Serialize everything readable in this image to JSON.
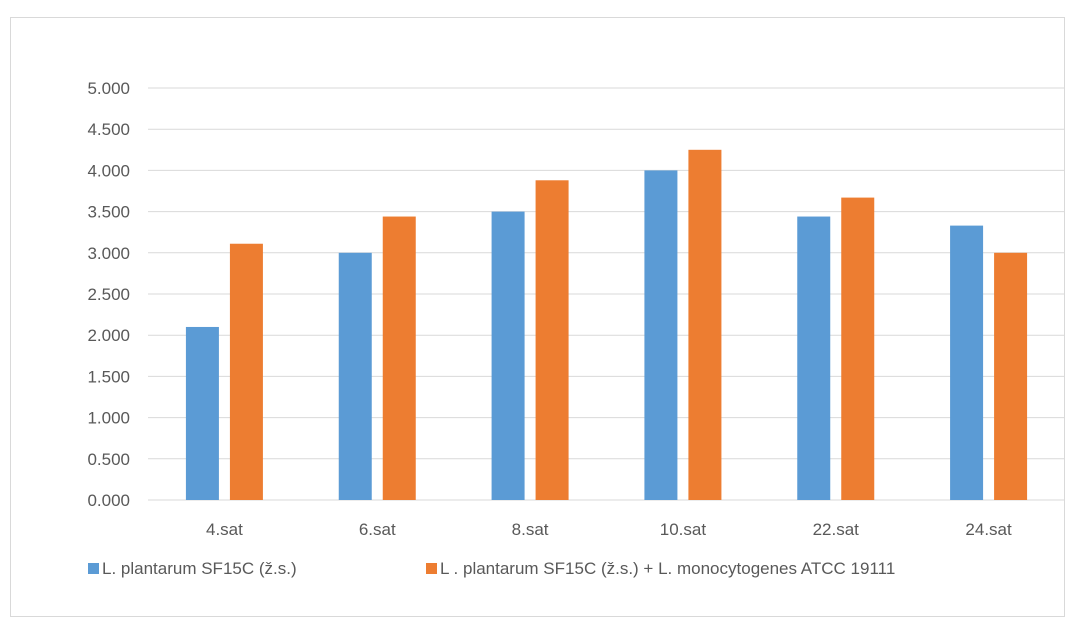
{
  "chart_data": {
    "type": "bar",
    "categories": [
      "4.sat",
      "6.sat",
      "8.sat",
      "10.sat",
      "22.sat",
      "24.sat"
    ],
    "series": [
      {
        "name": "L. plantarum SF15C (ž.s.)",
        "color": "#5b9bd5",
        "values": [
          2.1,
          3.0,
          3.5,
          4.0,
          3.44,
          3.33
        ]
      },
      {
        "name": "L . plantarum SF15C (ž.s.) + L. monocytogenes ATCC 19111",
        "color": "#ed7d31",
        "values": [
          3.11,
          3.44,
          3.88,
          4.25,
          3.67,
          3.0
        ]
      }
    ],
    "yticks": [
      "0.000",
      "0.500",
      "1.000",
      "1.500",
      "2.000",
      "2.500",
      "3.000",
      "3.500",
      "4.000",
      "4.500",
      "5.000"
    ],
    "ylim": [
      0,
      5
    ],
    "ystep": 0.5,
    "grid": true,
    "legend_position": "bottom",
    "gridline_color": "#d9d9d9"
  }
}
